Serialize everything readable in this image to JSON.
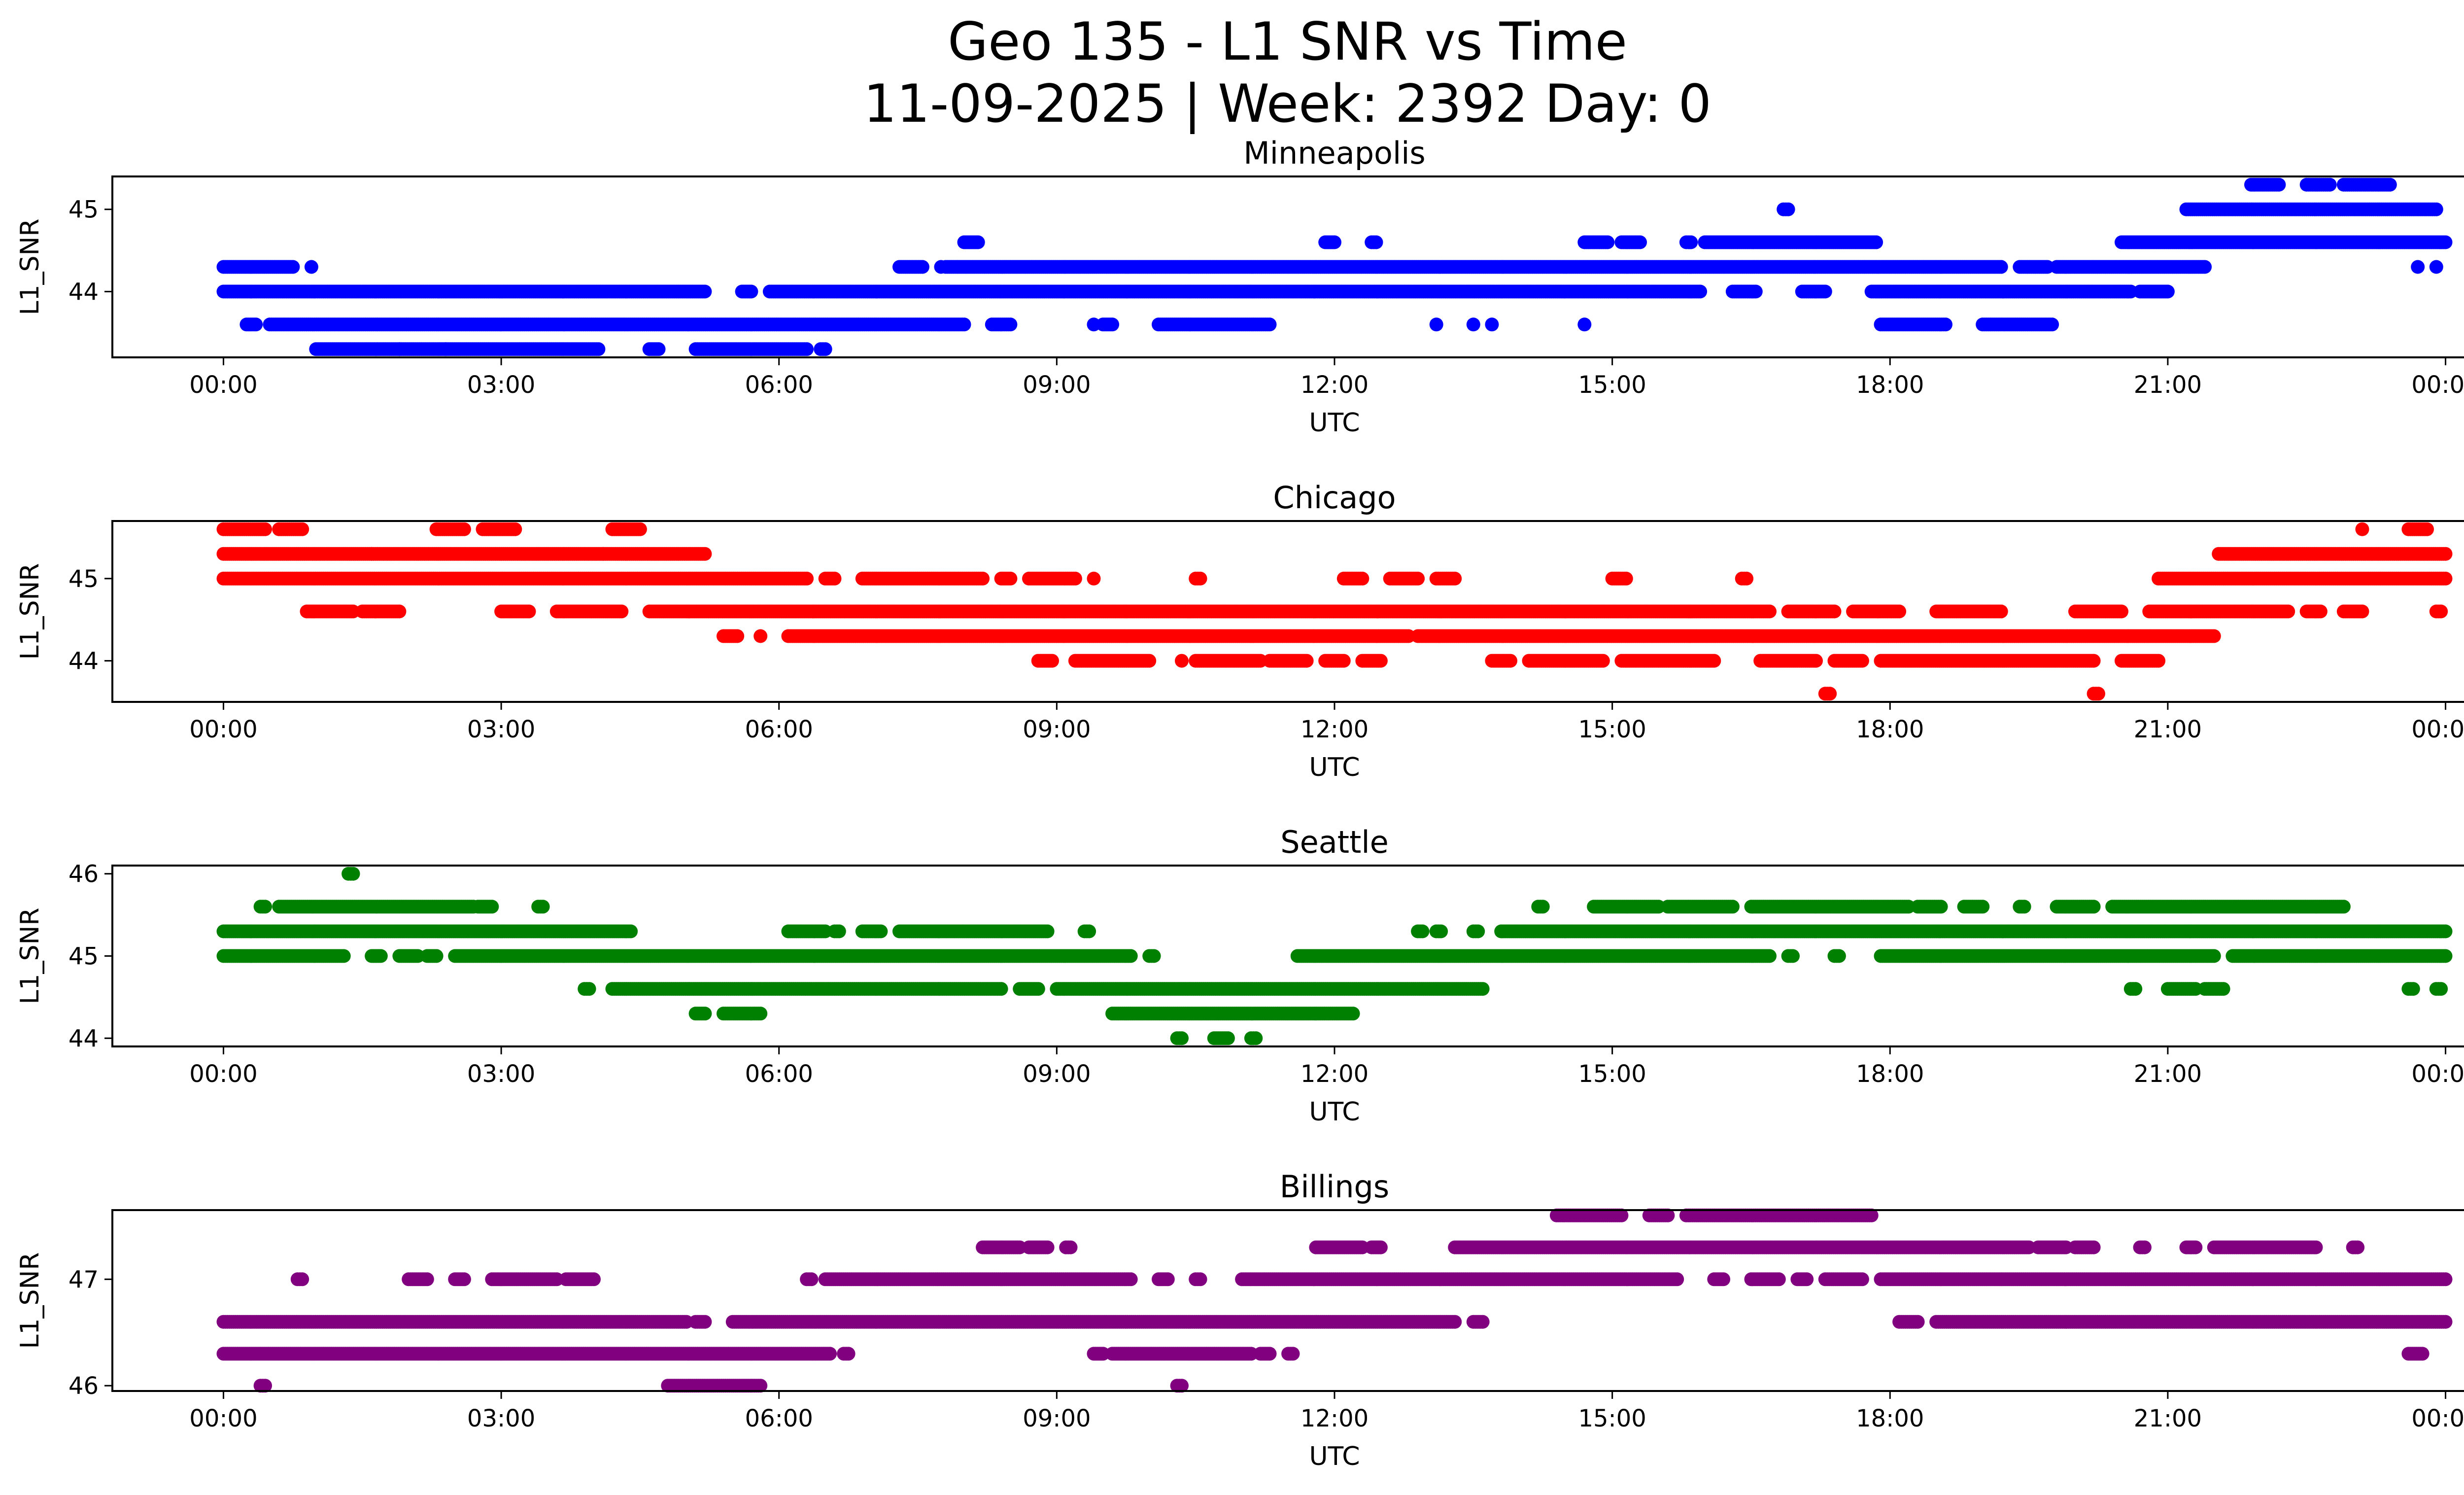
{
  "figure": {
    "title_line1": "Geo 135 - L1 SNR vs Time",
    "title_line2": "11-09-2025 | Week: 2392 Day: 0"
  },
  "chart_data": [
    {
      "type": "scatter",
      "title": "Minneapolis",
      "xlabel": "UTC",
      "ylabel": "L1_SNR",
      "color": "#0000ff",
      "xlim": [
        -1.2,
        25.2
      ],
      "ylim": [
        43.2,
        45.4
      ],
      "xticks": [
        0,
        3,
        6,
        9,
        12,
        15,
        18,
        21,
        24
      ],
      "xticklabels": [
        "00:00",
        "03:00",
        "06:00",
        "09:00",
        "12:00",
        "15:00",
        "18:00",
        "21:00",
        "00:00"
      ],
      "yticks": [
        44,
        45
      ],
      "yticklabels": [
        "44",
        "45"
      ],
      "bands": [
        {
          "y": 44.3,
          "segments": [
            [
              0.0,
              0.75
            ],
            [
              7.3,
              7.55
            ],
            [
              7.8,
              19.2
            ],
            [
              19.4,
              19.7
            ],
            [
              19.8,
              21.4
            ]
          ]
        },
        {
          "y": 44.0,
          "segments": [
            [
              0.0,
              5.2
            ],
            [
              5.6,
              5.7
            ],
            [
              5.9,
              15.95
            ],
            [
              16.3,
              16.55
            ],
            [
              17.05,
              17.3
            ],
            [
              17.8,
              20.6
            ],
            [
              20.7,
              21.0
            ]
          ]
        },
        {
          "y": 43.6,
          "segments": [
            [
              0.25,
              0.35
            ],
            [
              0.5,
              8.0
            ],
            [
              8.3,
              8.5
            ],
            [
              9.5,
              9.6
            ],
            [
              10.1,
              11.3
            ],
            [
              17.9,
              18.6
            ],
            [
              19.0,
              19.75
            ]
          ]
        },
        {
          "y": 43.3,
          "segments": [
            [
              1.0,
              4.05
            ],
            [
              4.6,
              4.7
            ],
            [
              5.1,
              6.3
            ],
            [
              6.45,
              6.5
            ]
          ]
        },
        {
          "y": 44.6,
          "segments": [
            [
              8.0,
              8.15
            ],
            [
              11.9,
              12.0
            ],
            [
              12.4,
              12.45
            ],
            [
              14.7,
              14.95
            ],
            [
              15.1,
              15.3
            ],
            [
              15.8,
              15.85
            ],
            [
              16.0,
              17.85
            ],
            [
              20.5,
              24.0
            ]
          ]
        },
        {
          "y": 45.0,
          "segments": [
            [
              16.85,
              16.9
            ],
            [
              21.2,
              23.9
            ]
          ]
        },
        {
          "y": 45.3,
          "segments": [
            [
              21.9,
              22.2
            ],
            [
              22.5,
              22.75
            ],
            [
              22.9,
              23.4
            ]
          ]
        }
      ],
      "points": [
        {
          "x": 0.95,
          "y": 44.3
        },
        {
          "x": 7.75,
          "y": 44.3
        },
        {
          "x": 23.7,
          "y": 44.3
        },
        {
          "x": 23.9,
          "y": 44.3
        },
        {
          "x": 9.4,
          "y": 43.6
        },
        {
          "x": 13.1,
          "y": 43.6
        },
        {
          "x": 13.5,
          "y": 43.6
        },
        {
          "x": 13.7,
          "y": 43.6
        },
        {
          "x": 14.7,
          "y": 43.6
        },
        {
          "x": 2.4,
          "y": 43.3
        },
        {
          "x": 1.9,
          "y": 43.3
        }
      ]
    },
    {
      "type": "scatter",
      "title": "Chicago",
      "xlabel": "UTC",
      "ylabel": "L1_SNR",
      "color": "#ff0000",
      "xlim": [
        -1.2,
        25.2
      ],
      "ylim": [
        43.5,
        45.7
      ],
      "xticks": [
        0,
        3,
        6,
        9,
        12,
        15,
        18,
        21,
        24
      ],
      "xticklabels": [
        "00:00",
        "03:00",
        "06:00",
        "09:00",
        "12:00",
        "15:00",
        "18:00",
        "21:00",
        "00:00"
      ],
      "yticks": [
        44,
        45
      ],
      "yticklabels": [
        "44",
        "45"
      ],
      "bands": [
        {
          "y": 45.6,
          "segments": [
            [
              0.0,
              0.45
            ],
            [
              0.6,
              0.85
            ],
            [
              2.3,
              2.6
            ],
            [
              2.8,
              3.15
            ],
            [
              4.2,
              4.5
            ],
            [
              23.6,
              23.8
            ]
          ]
        },
        {
          "y": 45.3,
          "segments": [
            [
              0.0,
              1.6
            ],
            [
              1.6,
              4.1
            ],
            [
              4.1,
              5.2
            ],
            [
              21.55,
              24.0
            ]
          ]
        },
        {
          "y": 45.0,
          "segments": [
            [
              0.0,
              6.3
            ],
            [
              6.5,
              6.6
            ],
            [
              6.9,
              8.2
            ],
            [
              8.4,
              8.5
            ],
            [
              8.7,
              9.2
            ],
            [
              10.5,
              10.55
            ],
            [
              12.1,
              12.3
            ],
            [
              12.6,
              12.9
            ],
            [
              13.1,
              13.3
            ],
            [
              15.0,
              15.15
            ],
            [
              16.4,
              16.45
            ],
            [
              20.9,
              24.0
            ]
          ]
        },
        {
          "y": 44.6,
          "segments": [
            [
              0.9,
              1.4
            ],
            [
              1.5,
              1.9
            ],
            [
              3.0,
              3.3
            ],
            [
              3.6,
              4.3
            ],
            [
              4.6,
              16.7
            ],
            [
              16.9,
              17.4
            ],
            [
              17.6,
              18.1
            ],
            [
              18.5,
              19.2
            ],
            [
              20.0,
              20.5
            ],
            [
              20.8,
              22.3
            ],
            [
              22.5,
              22.65
            ],
            [
              22.9,
              23.1
            ],
            [
              23.9,
              23.95
            ]
          ]
        },
        {
          "y": 44.3,
          "segments": [
            [
              5.4,
              5.55
            ],
            [
              6.1,
              12.8
            ],
            [
              12.9,
              21.5
            ]
          ]
        },
        {
          "y": 44.0,
          "segments": [
            [
              8.8,
              8.95
            ],
            [
              9.2,
              10.0
            ],
            [
              10.5,
              11.2
            ],
            [
              11.3,
              11.7
            ],
            [
              11.9,
              12.1
            ],
            [
              12.3,
              12.5
            ],
            [
              13.7,
              13.9
            ],
            [
              14.1,
              14.9
            ],
            [
              15.1,
              16.1
            ],
            [
              16.6,
              17.2
            ],
            [
              17.4,
              17.7
            ],
            [
              17.9,
              20.2
            ],
            [
              20.5,
              20.9
            ]
          ]
        },
        {
          "y": 43.6,
          "segments": [
            [
              17.3,
              17.35
            ],
            [
              20.2,
              20.25
            ]
          ]
        }
      ],
      "points": [
        {
          "x": 5.8,
          "y": 44.3
        },
        {
          "x": 9.4,
          "y": 45.0
        },
        {
          "x": 10.35,
          "y": 44.0
        },
        {
          "x": 23.1,
          "y": 45.6
        }
      ]
    },
    {
      "type": "scatter",
      "title": "Seattle",
      "xlabel": "UTC",
      "ylabel": "L1_SNR",
      "color": "#008000",
      "xlim": [
        -1.2,
        25.2
      ],
      "ylim": [
        43.9,
        46.1
      ],
      "xticks": [
        0,
        3,
        6,
        9,
        12,
        15,
        18,
        21,
        24
      ],
      "xticklabels": [
        "00:00",
        "03:00",
        "06:00",
        "09:00",
        "12:00",
        "15:00",
        "18:00",
        "21:00",
        "00:00"
      ],
      "yticks": [
        44,
        45,
        46
      ],
      "yticklabels": [
        "44",
        "45",
        "46"
      ],
      "bands": [
        {
          "y": 46.0,
          "segments": [
            [
              1.35,
              1.4
            ]
          ]
        },
        {
          "y": 45.6,
          "segments": [
            [
              0.4,
              0.45
            ],
            [
              0.6,
              2.7
            ],
            [
              2.75,
              2.9
            ],
            [
              3.4,
              3.45
            ],
            [
              14.2,
              14.25
            ],
            [
              14.8,
              15.5
            ],
            [
              15.6,
              16.3
            ],
            [
              16.5,
              18.2
            ],
            [
              18.3,
              18.55
            ],
            [
              18.8,
              19.0
            ],
            [
              19.4,
              19.45
            ],
            [
              19.8,
              20.2
            ],
            [
              20.4,
              22.9
            ]
          ]
        },
        {
          "y": 45.3,
          "segments": [
            [
              0.0,
              4.4
            ],
            [
              6.1,
              6.5
            ],
            [
              6.6,
              6.65
            ],
            [
              6.9,
              7.1
            ],
            [
              7.3,
              8.9
            ],
            [
              9.3,
              9.35
            ],
            [
              12.9,
              12.95
            ],
            [
              13.1,
              13.15
            ],
            [
              13.5,
              13.55
            ],
            [
              13.8,
              24.0
            ]
          ]
        },
        {
          "y": 45.0,
          "segments": [
            [
              0.0,
              1.3
            ],
            [
              1.6,
              1.7
            ],
            [
              1.9,
              2.1
            ],
            [
              2.2,
              2.3
            ],
            [
              2.5,
              9.8
            ],
            [
              10.0,
              10.05
            ],
            [
              11.6,
              16.7
            ],
            [
              16.9,
              16.95
            ],
            [
              17.4,
              17.45
            ],
            [
              17.9,
              21.5
            ],
            [
              21.7,
              24.0
            ]
          ]
        },
        {
          "y": 44.6,
          "segments": [
            [
              3.9,
              3.95
            ],
            [
              4.2,
              8.4
            ],
            [
              8.6,
              8.8
            ],
            [
              9.0,
              13.6
            ],
            [
              20.6,
              20.65
            ],
            [
              21.0,
              21.3
            ],
            [
              21.4,
              21.6
            ],
            [
              23.6,
              23.65
            ],
            [
              23.9,
              23.95
            ]
          ]
        },
        {
          "y": 44.3,
          "segments": [
            [
              5.1,
              5.2
            ],
            [
              5.4,
              5.8
            ],
            [
              9.6,
              12.2
            ]
          ]
        },
        {
          "y": 44.0,
          "segments": [
            [
              10.3,
              10.35
            ],
            [
              10.7,
              10.85
            ],
            [
              11.1,
              11.15
            ]
          ]
        }
      ],
      "points": []
    },
    {
      "type": "scatter",
      "title": "Billings",
      "xlabel": "UTC",
      "ylabel": "L1_SNR",
      "color": "#800080",
      "xlim": [
        -1.2,
        25.2
      ],
      "ylim": [
        45.95,
        47.65
      ],
      "xticks": [
        0,
        3,
        6,
        9,
        12,
        15,
        18,
        21,
        24
      ],
      "xticklabels": [
        "00:00",
        "03:00",
        "06:00",
        "09:00",
        "12:00",
        "15:00",
        "18:00",
        "21:00",
        "00:00"
      ],
      "yticks": [
        46,
        47
      ],
      "yticklabels": [
        "46",
        "47"
      ],
      "bands": [
        {
          "y": 47.6,
          "segments": [
            [
              14.4,
              15.1
            ],
            [
              15.4,
              15.6
            ],
            [
              15.8,
              17.8
            ]
          ]
        },
        {
          "y": 47.3,
          "segments": [
            [
              8.2,
              8.6
            ],
            [
              8.7,
              8.9
            ],
            [
              9.1,
              9.15
            ],
            [
              11.8,
              12.3
            ],
            [
              12.4,
              12.5
            ],
            [
              13.3,
              19.5
            ],
            [
              19.6,
              19.9
            ],
            [
              20.0,
              20.2
            ],
            [
              20.7,
              20.75
            ],
            [
              21.2,
              21.3
            ],
            [
              21.5,
              22.6
            ],
            [
              23.0,
              23.05
            ]
          ]
        },
        {
          "y": 47.0,
          "segments": [
            [
              0.8,
              0.85
            ],
            [
              2.0,
              2.2
            ],
            [
              2.5,
              2.6
            ],
            [
              2.9,
              3.6
            ],
            [
              3.7,
              4.0
            ],
            [
              6.3,
              6.35
            ],
            [
              6.5,
              9.8
            ],
            [
              10.1,
              10.2
            ],
            [
              10.5,
              10.55
            ],
            [
              11.0,
              15.7
            ],
            [
              16.1,
              16.2
            ],
            [
              16.5,
              16.8
            ],
            [
              17.0,
              17.1
            ],
            [
              17.3,
              17.7
            ],
            [
              17.9,
              24.0
            ]
          ]
        },
        {
          "y": 46.6,
          "segments": [
            [
              0.0,
              5.0
            ],
            [
              5.1,
              5.2
            ],
            [
              5.5,
              13.3
            ],
            [
              13.5,
              13.6
            ],
            [
              18.1,
              18.3
            ],
            [
              18.5,
              24.0
            ]
          ]
        },
        {
          "y": 46.3,
          "segments": [
            [
              0.0,
              6.55
            ],
            [
              6.7,
              6.75
            ],
            [
              9.4,
              9.5
            ],
            [
              9.6,
              11.1
            ],
            [
              11.2,
              11.3
            ],
            [
              11.5,
              11.55
            ],
            [
              23.6,
              23.75
            ]
          ]
        },
        {
          "y": 46.0,
          "segments": [
            [
              0.4,
              0.45
            ],
            [
              4.8,
              5.8
            ],
            [
              10.3,
              10.35
            ]
          ]
        }
      ],
      "points": []
    }
  ]
}
